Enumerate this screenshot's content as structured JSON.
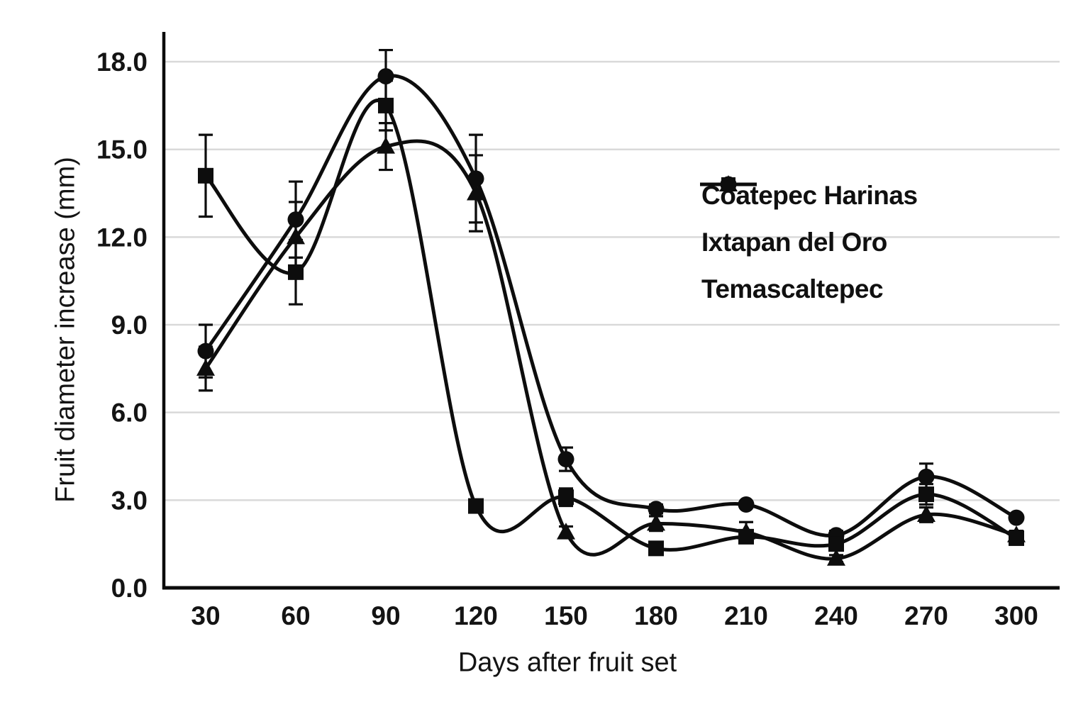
{
  "figure": {
    "background": "#ffffff",
    "text_color": "#141414",
    "series_color": "#0d0d0d",
    "gridline_color": "#d9d9d9"
  },
  "chart_data": {
    "type": "line",
    "title": "",
    "xlabel": "Days after fruit set",
    "ylabel": "Fruit diameter increase (mm)",
    "x": [
      30,
      60,
      90,
      120,
      150,
      180,
      210,
      240,
      270,
      300
    ],
    "xtick_labels": [
      "30",
      "60",
      "90",
      "120",
      "150",
      "180",
      "210",
      "240",
      "270",
      "300"
    ],
    "ytick_values": [
      0,
      3,
      6,
      9,
      12,
      15,
      18
    ],
    "ytick_labels": [
      "0.0",
      "3.0",
      "6.0",
      "9.0",
      "12.0",
      "15.0",
      "18.0"
    ],
    "ylim": [
      0,
      19
    ],
    "grid": "horizontal-only",
    "legend_position": "right-center",
    "error_bars": true,
    "curve_style": "smooth-spline",
    "series": [
      {
        "name": "Coatepec Harinas",
        "marker": "circle",
        "values": [
          8.1,
          12.6,
          17.5,
          14.0,
          4.4,
          2.7,
          2.85,
          1.8,
          3.8,
          2.4
        ],
        "errors": [
          0.9,
          1.3,
          0.9,
          1.5,
          0.4,
          0.15,
          0.1,
          0.15,
          0.45,
          0.1
        ]
      },
      {
        "name": "Ixtapan del Oro",
        "marker": "triangle",
        "values": [
          7.5,
          12.0,
          15.1,
          13.5,
          1.9,
          2.2,
          1.9,
          1.0,
          2.5,
          1.8
        ],
        "errors": [
          0.75,
          1.2,
          0.8,
          1.3,
          0.2,
          0.25,
          0.35,
          0.12,
          0.25,
          0.15
        ]
      },
      {
        "name": "Temascaltepec",
        "marker": "square",
        "values": [
          14.1,
          10.8,
          16.5,
          2.8,
          3.1,
          1.35,
          1.75,
          1.5,
          3.2,
          1.7
        ],
        "errors": [
          1.4,
          1.1,
          0.85,
          0.2,
          0.3,
          0.15,
          0.2,
          0.15,
          0.35,
          0.2
        ]
      }
    ]
  }
}
